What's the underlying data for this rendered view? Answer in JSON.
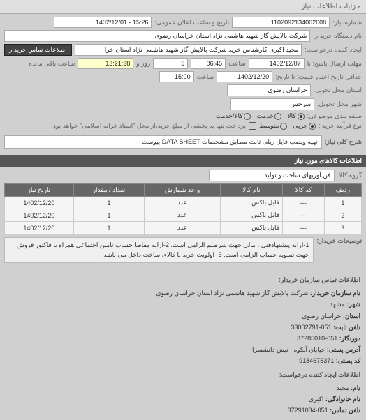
{
  "tab_title": "جزئیات اطلاعات نیاز",
  "header": {
    "req_no_label": "شماره نیاز:",
    "req_no": "1102092134002608",
    "public_datetime_label": "تاریخ و ساعت اعلان عمومی:",
    "public_datetime": "15:26 - 1402/12/01",
    "buyer_label": "نام دستگاه خریدار:",
    "buyer": "شرکت پالایش گاز شهید هاشمی نژاد   استان خراسان رضوی",
    "requester_label": "ایجاد کننده درخواست:",
    "requester": "مجید اکبری کارشناس خرید شرکت پالایش گاز شهید هاشمی نژاد   استان خرا",
    "contact_btn": "اطلاعات تماس خریدار",
    "deadline_recv_label": "مهلت ارسال پاسخ: تا",
    "deadline_date": "1402/12/07",
    "time_label": "ساعت",
    "deadline_time": "06:45",
    "days_label": "روز و",
    "days": "5",
    "remaining_label": "ساعت باقی مانده",
    "remaining_time": "13:21:38",
    "validity_label": "حداقل تاریخ اعتبار قیمت: تا تاریخ:",
    "validity_date": "1402/12/20",
    "validity_time": "15:00",
    "delivery_province_label": "استان محل تحویل:",
    "delivery_province": "خراسان رضوی",
    "delivery_city_label": "شهر محل تحویل:",
    "delivery_city": "سرخس",
    "budget_class_label": "طبقه بندی موضوعی:",
    "radio_kala": "کالا",
    "radio_khadmat": "خدمت",
    "radio_kala_khadmat": "کالا/خدمت",
    "process_type_label": "نوع فرآیند خرید :",
    "radio_kharid_jozi": "جزیی",
    "radio_motevaset": "متوسط",
    "partial_payment_label": "پرداخت تنها به بخشی از مبلغ خرید،از محل \"اسناد خزانه اسلامی\" خواهد بود.",
    "desc_label": "شرح کلی نیاز:",
    "desc": "تهیه ونصب فایل ریلی ثابت مطابق مشخصات DATA SHEET پیوست"
  },
  "items_header": "اطلاعات کالاهای مورد نیاز",
  "group_label": "گروه کالا:",
  "group_value": "فن آوریهای ساخت و تولید",
  "table": {
    "cols": [
      "ردیف",
      "کد کالا",
      "نام کالا",
      "واحد شمارش",
      "تعداد / مقدار",
      "تاریخ نیاز"
    ],
    "rows": [
      [
        "1",
        "---",
        "فایل باکس",
        "عدد",
        "1",
        "1402/12/20"
      ],
      [
        "2",
        "---",
        "فایل باکس",
        "عدد",
        "1",
        "1402/12/20"
      ],
      [
        "3",
        "---",
        "فایل باکس",
        "عدد",
        "1",
        "1402/12/20"
      ]
    ]
  },
  "buyer_notes_label": "توضیحات خریدار:",
  "buyer_notes": "1-ارایه پیشنهادفنی ، مالی جهت شرطلم الزامی است. 2-ارایه مفاصا حساب تامین اجتماعی همراه با فاکتور فروش جهت تسویه حساب الزامی است. 3- اولویت خرید با کالای ساخت داخل می باشد",
  "contact": {
    "section_title": "اطلاعات تماس سازمان خریدار:",
    "org_label": "نام سازمان خریدار:",
    "org": "شرکت پالایش گاز شهید هاشمی نژاد استان خراسان رضوی",
    "city_label": "شهر:",
    "city": "مشهد",
    "province_label": "استان:",
    "province": "خراسان رضوی",
    "phone_label": "تلفن ثابت:",
    "phone": "051-33002791",
    "fax_label": "دورنگار:",
    "fax": "051-37285010",
    "address_label": "آدرس پستی:",
    "address": "خیابان آبکوه - نبش دانشسرا",
    "postal_label": "کد پستی:",
    "postal": "9184675371",
    "creator_section": "اطلاعات ایجاد کننده درخواست:",
    "name_label": "نام:",
    "name": "مجید",
    "family_label": "نام خانوادگی:",
    "family": "اکبری",
    "contact_phone_label": "تلفن تماس:",
    "contact_phone": "051-37291034"
  }
}
